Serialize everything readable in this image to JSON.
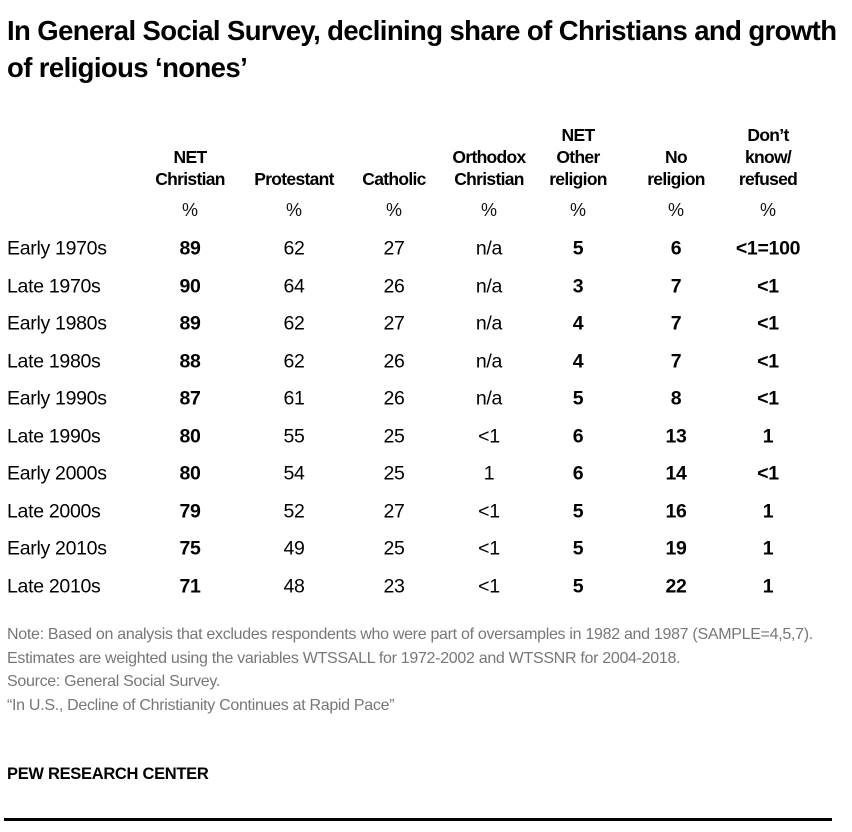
{
  "chart_data": {
    "type": "table",
    "title": "In General Social Survey, declining share of Christians and growth of religious ‘nones’",
    "columns": [
      "NET\nChristian",
      "Protestant",
      "Catholic",
      "Orthodox\nChristian",
      "NET\nOther\nreligion",
      "No\nreligion",
      "Don’t\nknow/\nrefused"
    ],
    "bold_columns": [
      true,
      false,
      false,
      false,
      true,
      true,
      true
    ],
    "unit_row": [
      "%",
      "%",
      "%",
      "%",
      "%",
      "%",
      "%"
    ],
    "rows": [
      {
        "label": "Early 1970s",
        "values": [
          "89",
          "62",
          "27",
          "n/a",
          "5",
          "6",
          "<1=100"
        ]
      },
      {
        "label": "Late 1970s",
        "values": [
          "90",
          "64",
          "26",
          "n/a",
          "3",
          "7",
          "<1"
        ]
      },
      {
        "label": "Early 1980s",
        "values": [
          "89",
          "62",
          "27",
          "n/a",
          "4",
          "7",
          "<1"
        ]
      },
      {
        "label": "Late 1980s",
        "values": [
          "88",
          "62",
          "26",
          "n/a",
          "4",
          "7",
          "<1"
        ]
      },
      {
        "label": "Early 1990s",
        "values": [
          "87",
          "61",
          "26",
          "n/a",
          "5",
          "8",
          "<1"
        ]
      },
      {
        "label": "Late 1990s",
        "values": [
          "80",
          "55",
          "25",
          "<1",
          "6",
          "13",
          "1"
        ]
      },
      {
        "label": "Early 2000s",
        "values": [
          "80",
          "54",
          "25",
          "1",
          "6",
          "14",
          "<1"
        ]
      },
      {
        "label": "Late 2000s",
        "values": [
          "79",
          "52",
          "27",
          "<1",
          "5",
          "16",
          "1"
        ]
      },
      {
        "label": "Early 2010s",
        "values": [
          "75",
          "49",
          "25",
          "<1",
          "5",
          "19",
          "1"
        ]
      },
      {
        "label": "Late 2010s",
        "values": [
          "71",
          "48",
          "23",
          "<1",
          "5",
          "22",
          "1"
        ]
      }
    ]
  },
  "notes": {
    "note": "Note: Based on analysis that excludes respondents who were part of oversamples in 1982 and 1987 (SAMPLE=4,5,7). Estimates are weighted using the variables WTSSALL for 1972-2002 and WTSSNR for 2004-2018.",
    "source": "Source: General Social Survey.",
    "report": "“In U.S., Decline of Christianity Continues at Rapid Pace”"
  },
  "brand": "PEW RESEARCH CENTER"
}
